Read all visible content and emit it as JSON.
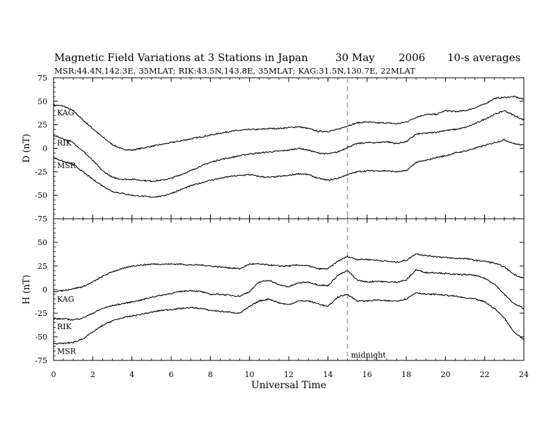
{
  "header": {
    "title": "Magnetic Field Variations at 3 Stations in Japan",
    "date": "30 May",
    "year": "2006",
    "averaging": "10-s averages",
    "subtitle": "MSR:44.4N,142.3E, 35MLAT;   RIK:43.5N,143.8E, 35MLAT;   KAG:31.5N,130.7E, 22MLAT"
  },
  "chart_data": [
    {
      "type": "line",
      "panel": "D",
      "ylabel": "D (nT)",
      "ylim": [
        -75,
        75
      ],
      "yticks": [
        -75,
        -50,
        -25,
        0,
        25,
        50,
        75
      ],
      "xlim": [
        0,
        24
      ],
      "series": [
        {
          "name": "KAG",
          "x": [
            0,
            0.5,
            1,
            1.5,
            2,
            2.5,
            3,
            3.5,
            4,
            4.5,
            5,
            5.5,
            6,
            6.5,
            7,
            7.5,
            8,
            8.5,
            9,
            9.5,
            10,
            10.5,
            11,
            11.5,
            12,
            12.5,
            13,
            13.5,
            14,
            14.5,
            15,
            15.5,
            16,
            16.5,
            17,
            17.5,
            18,
            18.5,
            19,
            19.5,
            20,
            20.5,
            21,
            21.5,
            22,
            22.5,
            23,
            23.5,
            24
          ],
          "y": [
            46,
            45,
            40,
            30,
            21,
            12,
            4,
            -1,
            -2,
            0,
            2,
            4,
            6,
            8,
            10,
            12,
            14,
            16,
            18,
            19,
            20,
            20,
            21,
            21,
            22,
            23,
            21,
            18,
            18,
            20,
            24,
            27,
            28,
            27,
            27,
            26,
            28,
            33,
            36,
            36,
            40,
            39,
            40,
            43,
            47,
            53,
            54,
            55,
            52
          ]
        },
        {
          "name": "RIK",
          "x": [
            0,
            0.5,
            1,
            1.5,
            2,
            2.5,
            3,
            3.5,
            4,
            4.5,
            5,
            5.5,
            6,
            6.5,
            7,
            7.5,
            8,
            8.5,
            9,
            9.5,
            10,
            10.5,
            11,
            11.5,
            12,
            12.5,
            13,
            13.5,
            14,
            14.5,
            15,
            15.5,
            16,
            16.5,
            17,
            17.5,
            18,
            18.5,
            19,
            19.5,
            20,
            20.5,
            21,
            21.5,
            22,
            22.5,
            23,
            23.5,
            24
          ],
          "y": [
            14,
            10,
            6,
            -3,
            -13,
            -24,
            -31,
            -33,
            -33,
            -34,
            -35,
            -34,
            -32,
            -28,
            -24,
            -19,
            -15,
            -12,
            -10,
            -8,
            -6,
            -5,
            -4,
            -3,
            -2,
            0,
            -2,
            -5,
            -6,
            -4,
            1,
            5,
            6,
            6,
            7,
            5,
            7,
            15,
            16,
            17,
            19,
            20,
            22,
            26,
            31,
            36,
            40,
            35,
            30
          ]
        },
        {
          "name": "MSR",
          "x": [
            0,
            0.5,
            1,
            1.5,
            2,
            2.5,
            3,
            3.5,
            4,
            4.5,
            5,
            5.5,
            6,
            6.5,
            7,
            7.5,
            8,
            8.5,
            9,
            9.5,
            10,
            10.5,
            11,
            11.5,
            12,
            12.5,
            13,
            13.5,
            14,
            14.5,
            15,
            15.5,
            16,
            16.5,
            17,
            17.5,
            18,
            18.5,
            19,
            19.5,
            20,
            20.5,
            21,
            21.5,
            22,
            22.5,
            23,
            23.5,
            24
          ],
          "y": [
            -10,
            -14,
            -17,
            -25,
            -33,
            -40,
            -46,
            -48,
            -50,
            -51,
            -52,
            -51,
            -48,
            -44,
            -40,
            -37,
            -34,
            -32,
            -30,
            -29,
            -28,
            -30,
            -31,
            -30,
            -29,
            -27,
            -28,
            -32,
            -34,
            -32,
            -28,
            -25,
            -24,
            -24,
            -24,
            -25,
            -24,
            -15,
            -13,
            -10,
            -8,
            -5,
            -3,
            0,
            3,
            6,
            9,
            5,
            3
          ]
        }
      ]
    },
    {
      "type": "line",
      "panel": "H",
      "ylabel": "H (nT)",
      "ylim": [
        -75,
        75
      ],
      "yticks": [
        -75,
        -50,
        -25,
        0,
        25,
        50
      ],
      "xlim": [
        0,
        24
      ],
      "xticks": [
        0,
        2,
        4,
        6,
        8,
        10,
        12,
        14,
        16,
        18,
        20,
        22,
        24
      ],
      "xlabel": "Universal Time",
      "annotation": {
        "x": 15,
        "label": "midnight",
        "style": "dashed vertical line"
      },
      "series": [
        {
          "name": "KAG",
          "x": [
            0,
            0.5,
            1,
            1.5,
            2,
            2.5,
            3,
            3.5,
            4,
            4.5,
            5,
            5.5,
            6,
            6.5,
            7,
            7.5,
            8,
            8.5,
            9,
            9.5,
            10,
            10.5,
            11,
            11.5,
            12,
            12.5,
            13,
            13.5,
            14,
            14.5,
            15,
            15.5,
            16,
            16.5,
            17,
            17.5,
            18,
            18.5,
            19,
            19.5,
            20,
            20.5,
            21,
            21.5,
            22,
            22.5,
            23,
            23.5,
            24
          ],
          "y": [
            -2,
            -1,
            1,
            3,
            8,
            14,
            19,
            22,
            25,
            26,
            27,
            27,
            27,
            27,
            26,
            26,
            25,
            24,
            23,
            22,
            27,
            27,
            26,
            25,
            25,
            26,
            25,
            22,
            22,
            30,
            35,
            32,
            32,
            31,
            30,
            29,
            31,
            38,
            36,
            35,
            34,
            33,
            33,
            31,
            30,
            28,
            24,
            16,
            12
          ]
        },
        {
          "name": "RIK",
          "x": [
            0,
            0.5,
            1,
            1.5,
            2,
            2.5,
            3,
            3.5,
            4,
            4.5,
            5,
            5.5,
            6,
            6.5,
            7,
            7.5,
            8,
            8.5,
            9,
            9.5,
            10,
            10.5,
            11,
            11.5,
            12,
            12.5,
            13,
            13.5,
            14,
            14.5,
            15,
            15.5,
            16,
            16.5,
            17,
            17.5,
            18,
            18.5,
            19,
            19.5,
            20,
            20.5,
            21,
            21.5,
            22,
            22.5,
            23,
            23.5,
            24
          ],
          "y": [
            -31,
            -31,
            -32,
            -30,
            -25,
            -20,
            -17,
            -15,
            -13,
            -11,
            -8,
            -6,
            -4,
            -2,
            -1,
            -2,
            -5,
            -5,
            -6,
            -7,
            -2,
            8,
            10,
            5,
            3,
            7,
            8,
            5,
            4,
            15,
            20,
            10,
            8,
            9,
            8,
            8,
            10,
            21,
            18,
            18,
            17,
            16,
            16,
            15,
            12,
            6,
            -5,
            -15,
            -20
          ]
        },
        {
          "name": "MSR",
          "x": [
            0,
            0.5,
            1,
            1.5,
            2,
            2.5,
            3,
            3.5,
            4,
            4.5,
            5,
            5.5,
            6,
            6.5,
            7,
            7.5,
            8,
            8.5,
            9,
            9.5,
            10,
            10.5,
            11,
            11.5,
            12,
            12.5,
            13,
            13.5,
            14,
            14.5,
            15,
            15.5,
            16,
            16.5,
            17,
            17.5,
            18,
            18.5,
            19,
            19.5,
            20,
            20.5,
            21,
            21.5,
            22,
            22.5,
            23,
            23.5,
            24
          ],
          "y": [
            -57,
            -57,
            -56,
            -52,
            -45,
            -38,
            -33,
            -30,
            -28,
            -26,
            -24,
            -22,
            -21,
            -20,
            -19,
            -20,
            -22,
            -23,
            -24,
            -25,
            -18,
            -12,
            -10,
            -14,
            -16,
            -12,
            -12,
            -15,
            -18,
            -8,
            -5,
            -12,
            -12,
            -11,
            -12,
            -12,
            -10,
            -3,
            -5,
            -5,
            -6,
            -7,
            -9,
            -10,
            -13,
            -20,
            -30,
            -45,
            -53
          ]
        }
      ]
    }
  ]
}
